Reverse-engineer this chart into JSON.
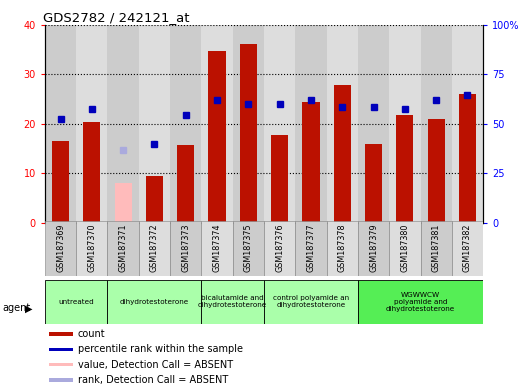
{
  "title": "GDS2782 / 242121_at",
  "samples": [
    "GSM187369",
    "GSM187370",
    "GSM187371",
    "GSM187372",
    "GSM187373",
    "GSM187374",
    "GSM187375",
    "GSM187376",
    "GSM187377",
    "GSM187378",
    "GSM187379",
    "GSM187380",
    "GSM187381",
    "GSM187382"
  ],
  "bar_values": [
    16.5,
    20.3,
    8.0,
    9.5,
    15.8,
    34.8,
    36.2,
    17.8,
    24.5,
    27.8,
    16.0,
    21.8,
    21.0,
    26.0
  ],
  "dot_values_pct": [
    52.5,
    57.5,
    37.0,
    40.0,
    54.5,
    62.0,
    60.0,
    60.0,
    62.0,
    58.5,
    58.5,
    57.5,
    62.0,
    64.5
  ],
  "absent_flags": [
    false,
    false,
    true,
    false,
    false,
    false,
    false,
    false,
    false,
    false,
    false,
    false,
    false,
    false
  ],
  "agent_groups": [
    {
      "label": "untreated",
      "start": 0,
      "end": 2,
      "color": "#aaffaa"
    },
    {
      "label": "dihydrotestoterone",
      "start": 2,
      "end": 5,
      "color": "#aaffaa"
    },
    {
      "label": "bicalutamide and\ndihydrotestoterone",
      "start": 5,
      "end": 7,
      "color": "#aaffaa"
    },
    {
      "label": "control polyamide an\ndihydrotestoterone",
      "start": 7,
      "end": 10,
      "color": "#aaffaa"
    },
    {
      "label": "WGWWCW\npolyamide and\ndihydrotestoterone",
      "start": 10,
      "end": 14,
      "color": "#55ee55"
    }
  ],
  "ylim_left": [
    0,
    40
  ],
  "ylim_right": [
    0,
    100
  ],
  "yticks_left": [
    0,
    10,
    20,
    30,
    40
  ],
  "yticks_right": [
    0,
    25,
    50,
    75,
    100
  ],
  "ytick_labels_right": [
    "0",
    "25",
    "50",
    "75",
    "100%"
  ],
  "bar_color_red": "#bb1100",
  "bar_color_pink": "#ffbbbb",
  "dot_color_blue": "#0000bb",
  "dot_color_lblue": "#aaaadd",
  "legend_items": [
    {
      "color": "#bb1100",
      "label": "count"
    },
    {
      "color": "#0000bb",
      "label": "percentile rank within the sample"
    },
    {
      "color": "#ffbbbb",
      "label": "value, Detection Call = ABSENT"
    },
    {
      "color": "#aaaadd",
      "label": "rank, Detection Call = ABSENT"
    }
  ],
  "bar_width": 0.55,
  "col_colors": [
    "#cccccc",
    "#dddddd"
  ],
  "plot_bg": "#ffffff",
  "agent_label": "agent"
}
